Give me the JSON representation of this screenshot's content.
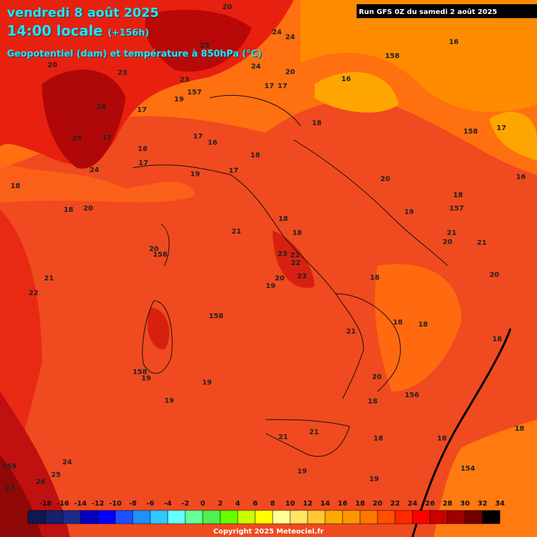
{
  "header": {
    "date": "vendredi 8 août 2025",
    "time": "14:00 locale",
    "lead": "(+156h)",
    "variable": "Geopotentiel (dam) et température à 850hPa (°C)"
  },
  "run": "Run GFS 0Z du samedi 2 août 2025",
  "copyright": "Copyright 2025 Meteociel.fr",
  "legend": {
    "ticks": [
      -18,
      -16,
      -14,
      -12,
      -10,
      -8,
      -6,
      -4,
      -2,
      0,
      2,
      4,
      6,
      8,
      10,
      12,
      14,
      16,
      18,
      20,
      22,
      24,
      26,
      28,
      30,
      32,
      34
    ],
    "colors": [
      "#101850",
      "#16206e",
      "#1c2c8c",
      "#0000c0",
      "#0000ff",
      "#1e50ff",
      "#1e90ff",
      "#32c8ff",
      "#64ffff",
      "#64ff96",
      "#50f050",
      "#64ff00",
      "#c8ff00",
      "#ffff00",
      "#ffff96",
      "#ffe664",
      "#ffc832",
      "#ffaa00",
      "#ff9600",
      "#ff7800",
      "#ff5000",
      "#ff2800",
      "#ff0000",
      "#c80000",
      "#a00000",
      "#700000",
      "#000000"
    ]
  },
  "contour_labels": [
    "20",
    "24",
    "24",
    "20",
    "23",
    "25",
    "23",
    "157",
    "24",
    "20",
    "17",
    "17",
    "16",
    "158",
    "16",
    "26",
    "17",
    "19",
    "25",
    "17",
    "18",
    "17",
    "16",
    "18",
    "158",
    "17",
    "24",
    "17",
    "19",
    "17",
    "18",
    "18",
    "18",
    "20",
    "18",
    "157",
    "16",
    "20",
    "21",
    "18",
    "21",
    "18",
    "19",
    "20",
    "21",
    "158",
    "23",
    "22",
    "20",
    "23",
    "19",
    "18",
    "21",
    "22",
    "20",
    "22",
    "158",
    "18",
    "18",
    "20",
    "18",
    "21",
    "158",
    "19",
    "20",
    "19",
    "19",
    "156",
    "21",
    "21",
    "18",
    "18",
    "19",
    "18",
    "154",
    "24",
    "25",
    "26",
    "159",
    "27",
    "18",
    "19"
  ]
}
